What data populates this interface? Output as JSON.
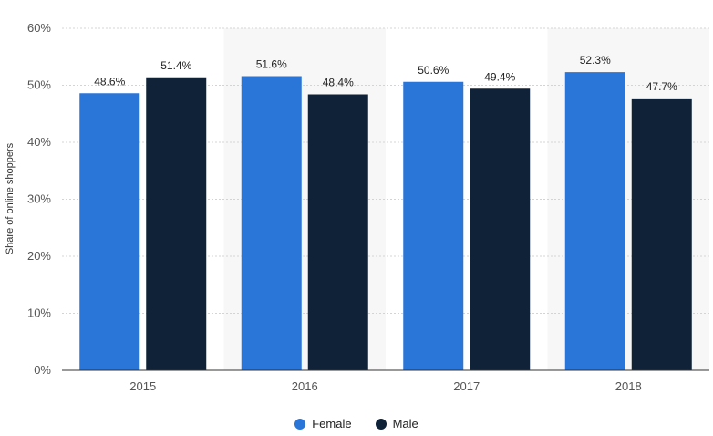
{
  "chart_data": {
    "type": "bar",
    "categories": [
      "2015",
      "2016",
      "2017",
      "2018"
    ],
    "series": [
      {
        "name": "Female",
        "values": [
          48.6,
          51.6,
          50.6,
          52.3
        ],
        "color": "#2a75d8"
      },
      {
        "name": "Male",
        "values": [
          51.4,
          48.4,
          49.4,
          47.7
        ],
        "color": "#0f2237"
      }
    ],
    "data_labels": {
      "Female": [
        "48.6%",
        "51.6%",
        "50.6%",
        "52.3%"
      ],
      "Male": [
        "51.4%",
        "48.4%",
        "49.4%",
        "47.7%"
      ]
    },
    "title": "",
    "xlabel": "",
    "ylabel": "Share of online shoppers",
    "ylim": [
      0,
      60
    ],
    "yticks": [
      0,
      10,
      20,
      30,
      40,
      50,
      60
    ],
    "ytick_labels": [
      "0%",
      "10%",
      "20%",
      "30%",
      "40%",
      "50%",
      "60%"
    ],
    "grid": true,
    "legend_position": "bottom-center"
  }
}
